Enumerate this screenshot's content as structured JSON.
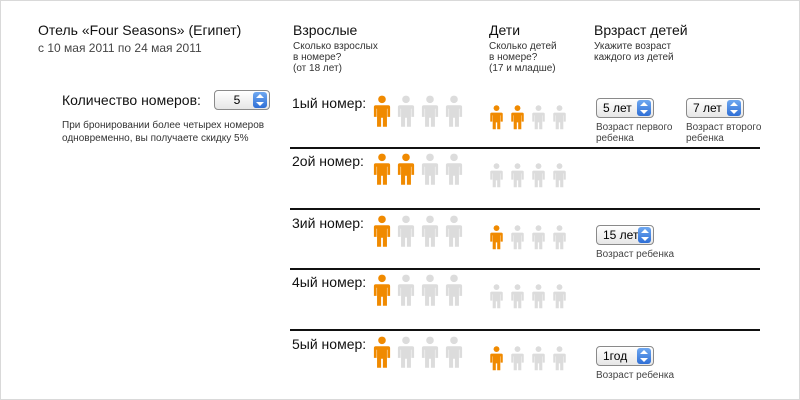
{
  "hotel": {
    "title": "Отель «Four Seasons» (Египет)",
    "dates": "с 10 мая 2011  по 24 мая 2011"
  },
  "rooms_control": {
    "label": "Количество номеров:",
    "value": "5",
    "discount_note": "При бронировании более четырех номеров одновременно, вы получаете скидку 5%"
  },
  "columns": {
    "adults": {
      "title": "Взрослые",
      "subtitle": [
        "Сколько взрослых",
        "в номере?",
        "(от 18 лет)"
      ]
    },
    "children": {
      "title": "Дети",
      "subtitle": [
        "Сколько детей",
        "в номере?",
        "(17 и младше)"
      ]
    },
    "child_ages": {
      "title": "Врзраст детей",
      "subtitle": [
        "Укажите возраст",
        "каждого из детей"
      ]
    }
  },
  "rooms": [
    {
      "label": "1ый номер:",
      "adults": 1,
      "children": 2,
      "ages": [
        {
          "value": "5 лет",
          "hint": [
            "Возраст первого",
            "ребенка"
          ]
        },
        {
          "value": "7 лет",
          "hint": [
            "Возраст второго",
            "ребенка"
          ]
        }
      ]
    },
    {
      "label": "2ой номер:",
      "adults": 2,
      "children": 0,
      "ages": []
    },
    {
      "label": "3ий номер:",
      "adults": 1,
      "children": 1,
      "ages": [
        {
          "value": "15 лет",
          "hint": [
            "Возраст ребенка"
          ]
        }
      ]
    },
    {
      "label": "4ый номер:",
      "adults": 1,
      "children": 0,
      "ages": []
    },
    {
      "label": "5ый номер:",
      "adults": 1,
      "children": 1,
      "ages": [
        {
          "value": "1год",
          "hint": [
            "Возраст ребенка"
          ]
        }
      ]
    }
  ],
  "colors": {
    "active": "#f08a00",
    "inactive": "#dcdcdc",
    "accent_arrow": "#2f6fd6"
  },
  "icons": {
    "adult": "adult-person-icon",
    "child": "child-person-icon",
    "select_arrow": "updown-arrow-icon"
  }
}
